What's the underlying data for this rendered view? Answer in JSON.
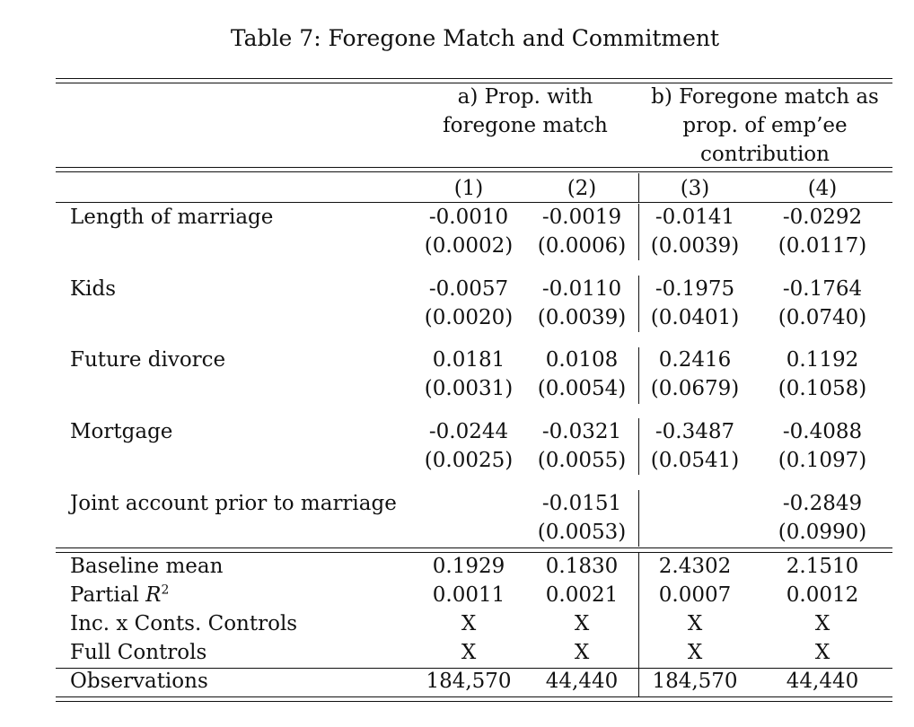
{
  "title": "Table 7: Foregone Match and Commitment",
  "panel_headers": {
    "a_line1": "a) Prop. with",
    "a_line2": "foregone match",
    "b_line1": "b) Foregone match as",
    "b_line2": "prop. of emp’ee",
    "b_line3": "contribution"
  },
  "columns": [
    "(1)",
    "(2)",
    "(3)",
    "(4)"
  ],
  "rows": [
    {
      "label": "Length of marriage",
      "coef": [
        "-0.0010",
        "-0.0019",
        "-0.0141",
        "-0.0292"
      ],
      "se": [
        "(0.0002)",
        "(0.0006)",
        "(0.0039)",
        "(0.0117)"
      ]
    },
    {
      "label": "Kids",
      "coef": [
        "-0.0057",
        "-0.0110",
        "-0.1975",
        "-0.1764"
      ],
      "se": [
        "(0.0020)",
        "(0.0039)",
        "(0.0401)",
        "(0.0740)"
      ]
    },
    {
      "label": "Future divorce",
      "coef": [
        "0.0181",
        "0.0108",
        "0.2416",
        "0.1192"
      ],
      "se": [
        "(0.0031)",
        "(0.0054)",
        "(0.0679)",
        "(0.1058)"
      ]
    },
    {
      "label": "Mortgage",
      "coef": [
        "-0.0244",
        "-0.0321",
        "-0.3487",
        "-0.4088"
      ],
      "se": [
        "(0.0025)",
        "(0.0055)",
        "(0.0541)",
        "(0.1097)"
      ]
    },
    {
      "label": "Joint account prior to marriage",
      "coef": [
        "",
        "-0.0151",
        "",
        "-0.2849"
      ],
      "se": [
        "",
        "(0.0053)",
        "",
        "(0.0990)"
      ]
    }
  ],
  "stats": [
    {
      "label": "Baseline mean",
      "values": [
        "0.1929",
        "0.1830",
        "2.4302",
        "2.1510"
      ]
    },
    {
      "label_main": "Partial ",
      "label_var": "R",
      "label_sup": "2",
      "values": [
        "0.0011",
        "0.0021",
        "0.0007",
        "0.0012"
      ]
    },
    {
      "label": "Inc. x Conts. Controls",
      "values": [
        "X",
        "X",
        "X",
        "X"
      ]
    },
    {
      "label": "Full Controls",
      "values": [
        "X",
        "X",
        "X",
        "X"
      ]
    }
  ],
  "observations": {
    "label": "Observations",
    "values": [
      "184,570",
      "44,440",
      "184,570",
      "44,440"
    ]
  }
}
